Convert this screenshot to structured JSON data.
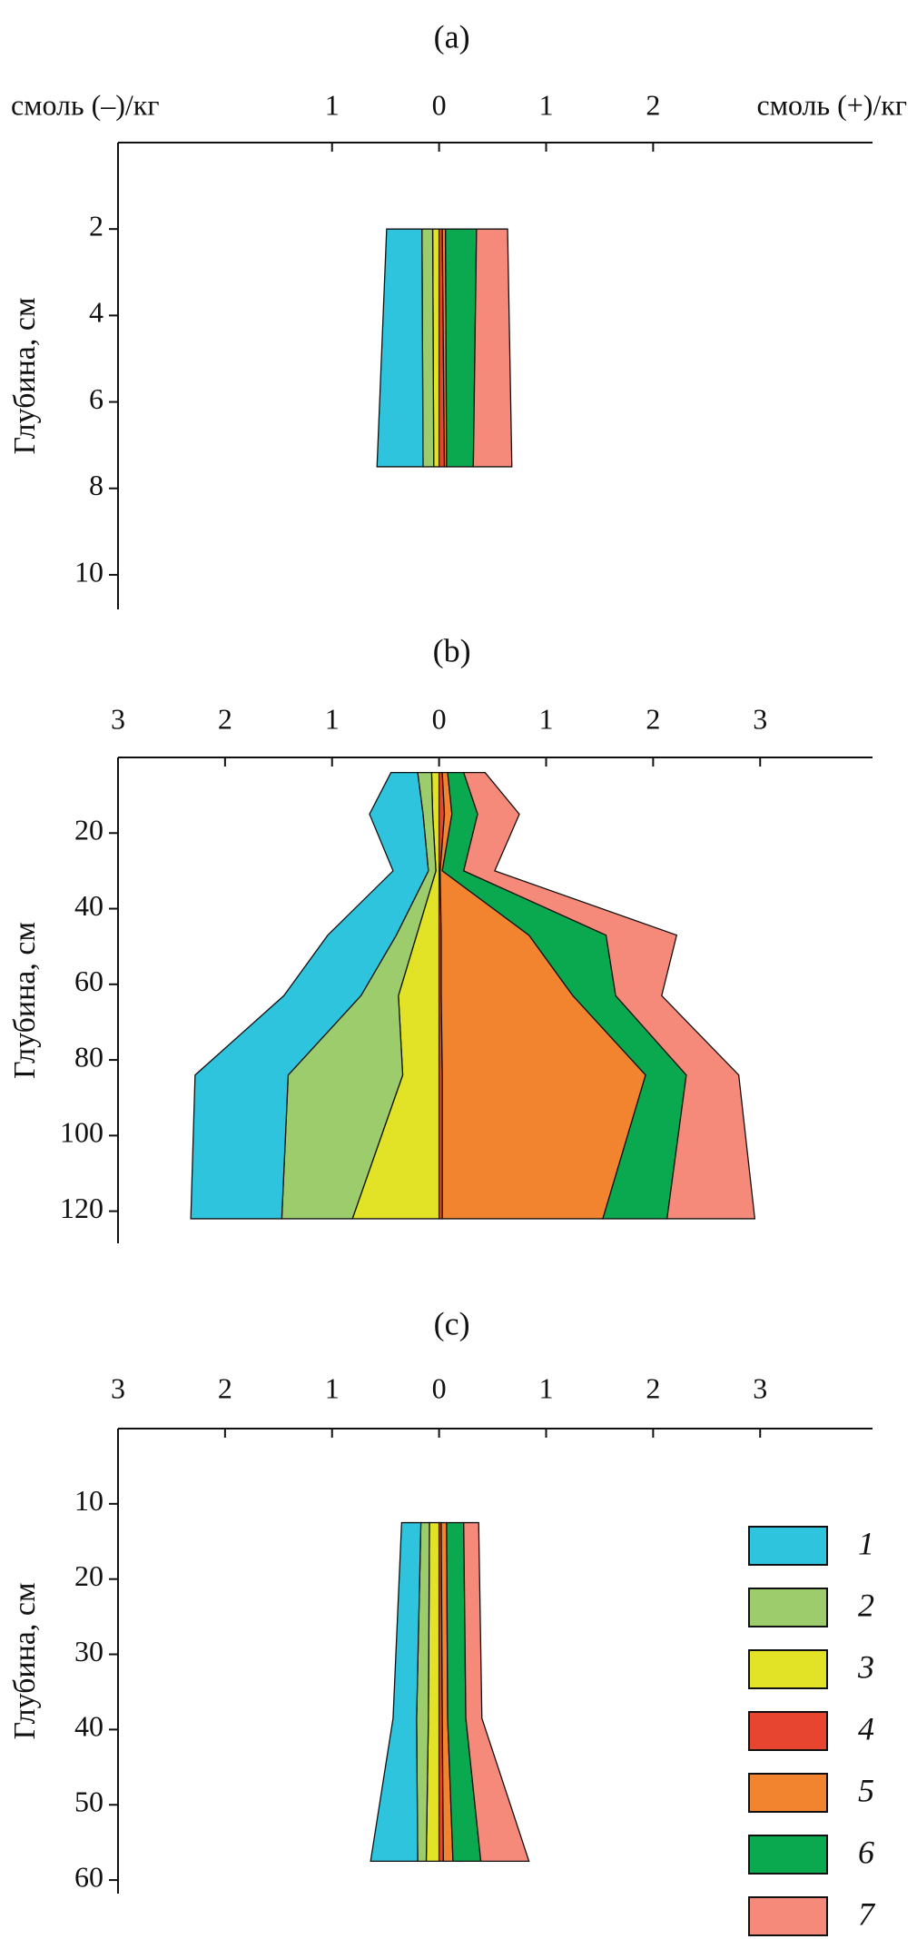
{
  "chart_data": [
    {
      "type": "area",
      "title": "(a)",
      "xlabel_left": "смоль (–)/кг",
      "xlabel_right": "смоль (+)/кг",
      "ylabel": "Глубина, см",
      "xlim": [
        -3,
        4.05
      ],
      "xticks": [
        {
          "value": -1,
          "label": "1"
        },
        0,
        1,
        2
      ],
      "ylim": [
        0,
        10.8
      ],
      "yticks": [
        2,
        4,
        6,
        8,
        10
      ],
      "y_inverted": true,
      "y": [
        2,
        7.5
      ],
      "series": [
        {
          "color": "#2ec4de",
          "values": [
            -0.33,
            -0.43
          ]
        },
        {
          "color": "#9ccc6c",
          "values": [
            -0.1,
            -0.1
          ]
        },
        {
          "color": "#e2e226",
          "values": [
            -0.06,
            -0.05
          ]
        },
        {
          "color": "#e84530",
          "values": [
            0.03,
            0.05
          ]
        },
        {
          "color": "#f28430",
          "values": [
            0.03,
            0.02
          ]
        },
        {
          "color": "#0aa84f",
          "values": [
            0.29,
            0.25
          ]
        },
        {
          "color": "#f58a7a",
          "values": [
            0.29,
            0.36
          ]
        }
      ]
    },
    {
      "type": "area",
      "title": "(b)",
      "ylabel": "Глубина, см",
      "xlim": [
        -3,
        4.05
      ],
      "xticks": [
        {
          "value": -3,
          "label": "3"
        },
        {
          "value": -2,
          "label": "2"
        },
        {
          "value": -1,
          "label": "1"
        },
        0,
        1,
        2,
        3
      ],
      "ylim": [
        0,
        128.5
      ],
      "yticks": [
        20,
        40,
        60,
        80,
        100,
        120
      ],
      "y_inverted": true,
      "y": [
        4,
        15,
        30,
        47,
        63,
        84,
        122
      ],
      "series": [
        {
          "color": "#2ec4de",
          "values": [
            -0.25,
            -0.5,
            -0.33,
            -0.64,
            -0.72,
            -0.87,
            -0.85
          ]
        },
        {
          "color": "#9ccc6c",
          "values": [
            -0.13,
            -0.09,
            -0.07,
            -0.19,
            -0.35,
            -1.07,
            -0.66
          ]
        },
        {
          "color": "#e2e226",
          "values": [
            -0.07,
            -0.06,
            -0.03,
            -0.21,
            -0.38,
            -0.34,
            -0.81
          ]
        },
        {
          "color": "#e84530",
          "values": [
            0.03,
            0.05,
            0.01,
            0.02,
            0.02,
            0.03,
            0.03
          ]
        },
        {
          "color": "#f28430",
          "values": [
            0.05,
            0.07,
            0.02,
            0.82,
            1.23,
            1.9,
            1.5
          ]
        },
        {
          "color": "#0aa84f",
          "values": [
            0.15,
            0.24,
            0.2,
            0.72,
            0.4,
            0.38,
            0.6
          ]
        },
        {
          "color": "#f58a7a",
          "values": [
            0.2,
            0.39,
            0.29,
            0.66,
            0.43,
            0.49,
            0.82
          ]
        }
      ]
    },
    {
      "type": "area",
      "title": "(c)",
      "ylabel": "Глубина, см",
      "xlim": [
        -3,
        4.05
      ],
      "xticks": [
        {
          "value": -3,
          "label": "3"
        },
        {
          "value": -2,
          "label": "2"
        },
        {
          "value": -1,
          "label": "1"
        },
        0,
        1,
        2,
        3
      ],
      "ylim": [
        0,
        61.8
      ],
      "yticks": [
        10,
        20,
        30,
        40,
        50,
        60
      ],
      "y_inverted": true,
      "y": [
        12.5,
        38.5,
        57.5
      ],
      "legend": "lower right",
      "series": [
        {
          "name": "1",
          "color": "#2ec4de",
          "values": [
            -0.18,
            -0.22,
            -0.44
          ]
        },
        {
          "name": "2",
          "color": "#9ccc6c",
          "values": [
            -0.08,
            -0.11,
            -0.08
          ]
        },
        {
          "name": "3",
          "color": "#e2e226",
          "values": [
            -0.09,
            -0.1,
            -0.12
          ]
        },
        {
          "name": "4",
          "color": "#e84530",
          "values": [
            0.02,
            0.03,
            0.04
          ]
        },
        {
          "name": "5",
          "color": "#f28430",
          "values": [
            0.05,
            0.05,
            0.09
          ]
        },
        {
          "name": "6",
          "color": "#0aa84f",
          "values": [
            0.16,
            0.17,
            0.26
          ]
        },
        {
          "name": "7",
          "color": "#f58a7a",
          "values": [
            0.14,
            0.15,
            0.45
          ]
        }
      ]
    }
  ]
}
